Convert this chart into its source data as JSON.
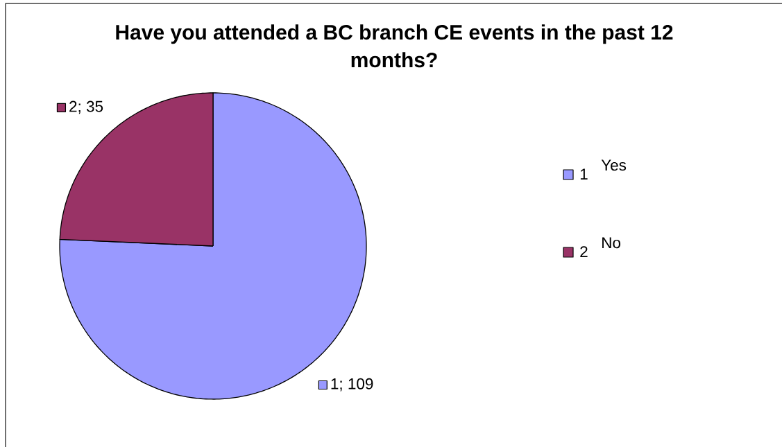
{
  "chart_data": {
    "type": "pie",
    "title": "Have you attended a BC branch CE events in the past 12 months?",
    "categories": [
      "1",
      "2"
    ],
    "values": [
      109,
      35
    ],
    "colors": [
      "#9999ff",
      "#993366"
    ],
    "value_labels": [
      "1; 109",
      "2; 35"
    ],
    "legend": "right",
    "annotations": [
      "Yes",
      "No"
    ]
  }
}
